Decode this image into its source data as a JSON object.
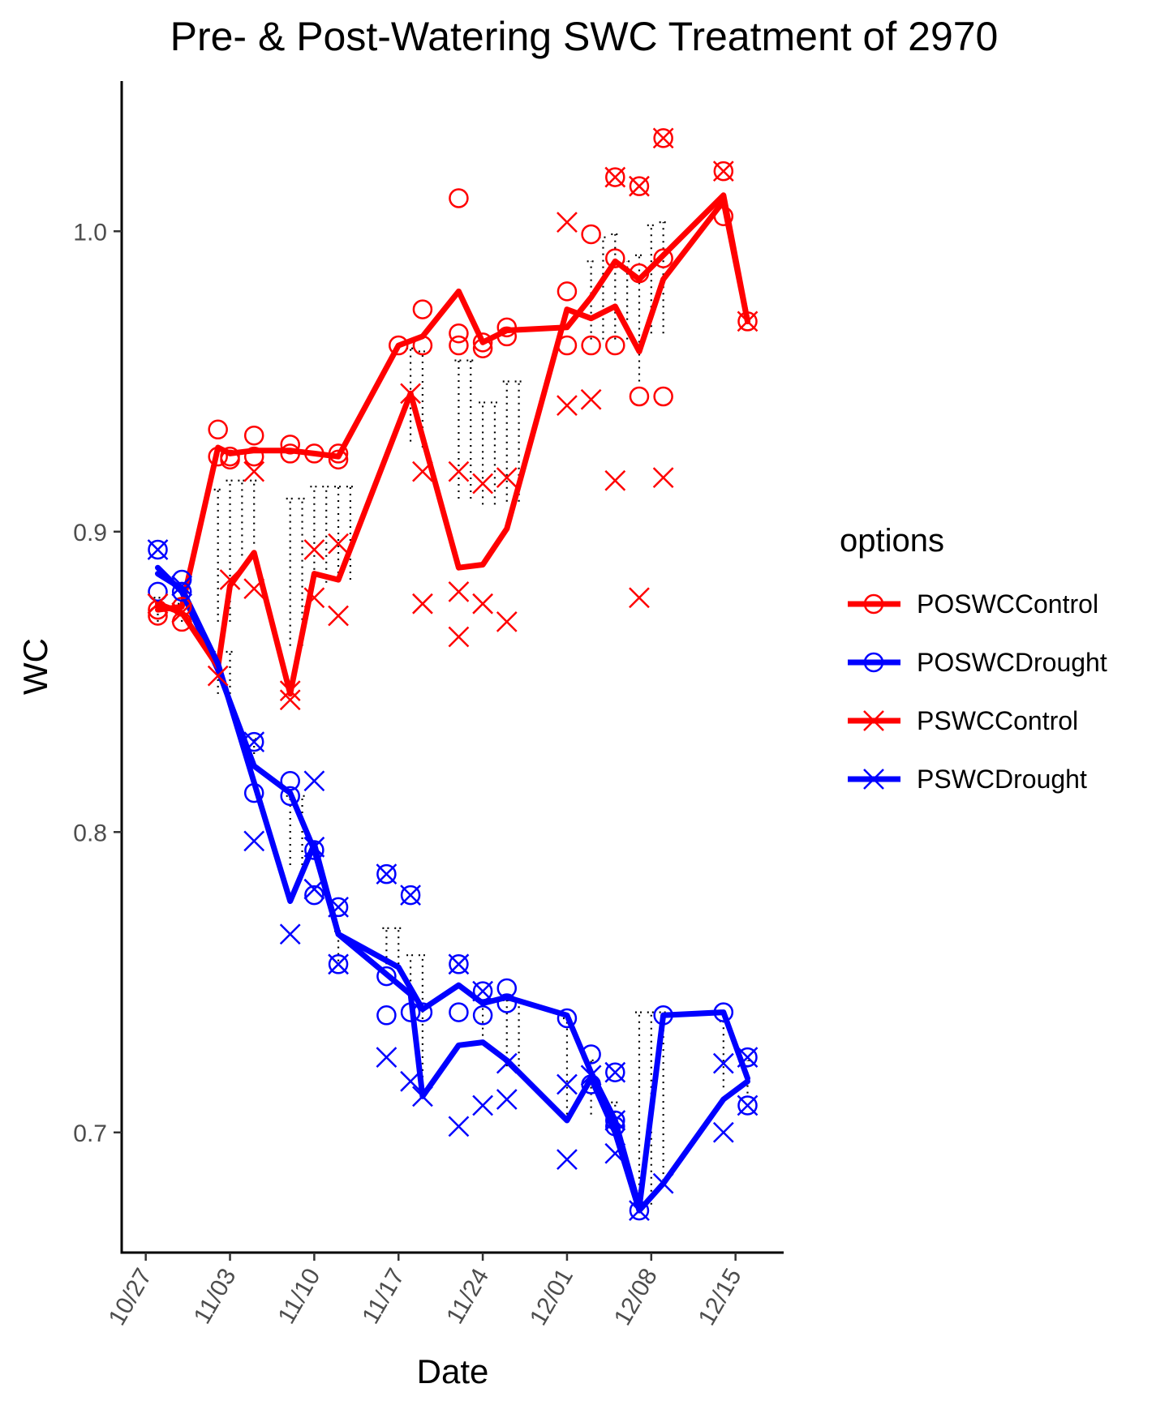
{
  "chart_data": {
    "type": "line",
    "title": "Pre- & Post-Watering SWC Treatment of  2970",
    "xlabel": "Date",
    "ylabel": "WC",
    "x_tick_labels": [
      "10/27",
      "11/03",
      "11/10",
      "11/17",
      "11/24",
      "12/01",
      "12/08",
      "12/15"
    ],
    "y_tick_labels": [
      "0.7",
      "0.8",
      "0.9",
      "1.0"
    ],
    "y_ticks": [
      0.7,
      0.8,
      0.9,
      1.0
    ],
    "ylim": [
      0.66,
      1.05
    ],
    "xlim": [
      "2021-10-25",
      "2021-12-19"
    ],
    "legend": {
      "title": "options",
      "position": "right"
    },
    "grid": false,
    "line_width_note": "",
    "series": [
      {
        "name": "POSWCControl",
        "color": "#ff0000",
        "marker": "circle",
        "line": [
          [
            "2021-10-28",
            0.874
          ],
          [
            "2021-10-30",
            0.875
          ],
          [
            "2021-11-02",
            0.928
          ],
          [
            "2021-11-03",
            0.926
          ],
          [
            "2021-11-05",
            0.927
          ],
          [
            "2021-11-08",
            0.927
          ],
          [
            "2021-11-10",
            0.926
          ],
          [
            "2021-11-12",
            0.925
          ],
          [
            "2021-11-17",
            0.962
          ],
          [
            "2021-11-19",
            0.965
          ],
          [
            "2021-11-22",
            0.98
          ],
          [
            "2021-11-24",
            0.963
          ],
          [
            "2021-11-26",
            0.967
          ],
          [
            "2021-12-01",
            0.968
          ],
          [
            "2021-12-03",
            0.978
          ],
          [
            "2021-12-05",
            0.99
          ],
          [
            "2021-12-07",
            0.984
          ],
          [
            "2021-12-09",
            0.992
          ],
          [
            "2021-12-14",
            1.012
          ],
          [
            "2021-12-16",
            0.97
          ]
        ],
        "points": [
          [
            "2021-10-28",
            0.874
          ],
          [
            "2021-10-28",
            0.872
          ],
          [
            "2021-10-30",
            0.875
          ],
          [
            "2021-10-30",
            0.87
          ],
          [
            "2021-11-02",
            0.934
          ],
          [
            "2021-11-02",
            0.925
          ],
          [
            "2021-11-03",
            0.925
          ],
          [
            "2021-11-03",
            0.924
          ],
          [
            "2021-11-05",
            0.932
          ],
          [
            "2021-11-05",
            0.925
          ],
          [
            "2021-11-08",
            0.929
          ],
          [
            "2021-11-08",
            0.926
          ],
          [
            "2021-11-10",
            0.926
          ],
          [
            "2021-11-12",
            0.926
          ],
          [
            "2021-11-12",
            0.924
          ],
          [
            "2021-11-17",
            0.962
          ],
          [
            "2021-11-19",
            0.974
          ],
          [
            "2021-11-19",
            0.962
          ],
          [
            "2021-11-22",
            1.011
          ],
          [
            "2021-11-22",
            0.966
          ],
          [
            "2021-11-22",
            0.962
          ],
          [
            "2021-11-24",
            0.963
          ],
          [
            "2021-11-24",
            0.961
          ],
          [
            "2021-11-26",
            0.968
          ],
          [
            "2021-11-26",
            0.965
          ],
          [
            "2021-12-01",
            0.98
          ],
          [
            "2021-12-01",
            0.962
          ],
          [
            "2021-12-03",
            0.999
          ],
          [
            "2021-12-03",
            0.962
          ],
          [
            "2021-12-05",
            1.018
          ],
          [
            "2021-12-05",
            0.991
          ],
          [
            "2021-12-05",
            0.962
          ],
          [
            "2021-12-07",
            1.015
          ],
          [
            "2021-12-07",
            0.986
          ],
          [
            "2021-12-07",
            0.945
          ],
          [
            "2021-12-09",
            1.031
          ],
          [
            "2021-12-09",
            0.991
          ],
          [
            "2021-12-09",
            0.945
          ],
          [
            "2021-12-14",
            1.02
          ],
          [
            "2021-12-14",
            1.005
          ],
          [
            "2021-12-16",
            0.97
          ]
        ]
      },
      {
        "name": "POSWCDrought",
        "color": "#0000ff",
        "marker": "circle",
        "line": [
          [
            "2021-10-28",
            0.888
          ],
          [
            "2021-10-30",
            0.88
          ],
          [
            "2021-11-02",
            0.854
          ],
          [
            "2021-11-05",
            0.822
          ],
          [
            "2021-11-08",
            0.813
          ],
          [
            "2021-11-10",
            0.794
          ],
          [
            "2021-11-12",
            0.766
          ],
          [
            "2021-11-17",
            0.755
          ],
          [
            "2021-11-19",
            0.741
          ],
          [
            "2021-11-22",
            0.749
          ],
          [
            "2021-11-24",
            0.743
          ],
          [
            "2021-11-26",
            0.745
          ],
          [
            "2021-12-01",
            0.739
          ],
          [
            "2021-12-03",
            0.72
          ],
          [
            "2021-12-05",
            0.704
          ],
          [
            "2021-12-07",
            0.675
          ],
          [
            "2021-12-09",
            0.739
          ],
          [
            "2021-12-14",
            0.74
          ],
          [
            "2021-12-16",
            0.718
          ]
        ],
        "points": [
          [
            "2021-10-28",
            0.894
          ],
          [
            "2021-10-28",
            0.88
          ],
          [
            "2021-10-30",
            0.884
          ],
          [
            "2021-10-30",
            0.88
          ],
          [
            "2021-11-05",
            0.83
          ],
          [
            "2021-11-05",
            0.813
          ],
          [
            "2021-11-08",
            0.817
          ],
          [
            "2021-11-08",
            0.812
          ],
          [
            "2021-11-10",
            0.794
          ],
          [
            "2021-11-10",
            0.779
          ],
          [
            "2021-11-12",
            0.775
          ],
          [
            "2021-11-12",
            0.756
          ],
          [
            "2021-11-16",
            0.786
          ],
          [
            "2021-11-16",
            0.752
          ],
          [
            "2021-11-16",
            0.739
          ],
          [
            "2021-11-18",
            0.779
          ],
          [
            "2021-11-18",
            0.74
          ],
          [
            "2021-11-19",
            0.74
          ],
          [
            "2021-11-22",
            0.756
          ],
          [
            "2021-11-22",
            0.74
          ],
          [
            "2021-11-24",
            0.747
          ],
          [
            "2021-11-24",
            0.739
          ],
          [
            "2021-11-26",
            0.748
          ],
          [
            "2021-11-26",
            0.743
          ],
          [
            "2021-12-01",
            0.738
          ],
          [
            "2021-12-03",
            0.726
          ],
          [
            "2021-12-03",
            0.716
          ],
          [
            "2021-12-05",
            0.72
          ],
          [
            "2021-12-05",
            0.704
          ],
          [
            "2021-12-05",
            0.702
          ],
          [
            "2021-12-07",
            0.674
          ],
          [
            "2021-12-09",
            0.739
          ],
          [
            "2021-12-14",
            0.74
          ],
          [
            "2021-12-16",
            0.725
          ],
          [
            "2021-12-16",
            0.709
          ]
        ]
      },
      {
        "name": "PSWCControl",
        "color": "#ff0000",
        "marker": "x",
        "line": [
          [
            "2021-10-28",
            0.876
          ],
          [
            "2021-10-30",
            0.873
          ],
          [
            "2021-11-02",
            0.855
          ],
          [
            "2021-11-03",
            0.882
          ],
          [
            "2021-11-05",
            0.893
          ],
          [
            "2021-11-08",
            0.846
          ],
          [
            "2021-11-10",
            0.886
          ],
          [
            "2021-11-12",
            0.884
          ],
          [
            "2021-11-18",
            0.946
          ],
          [
            "2021-11-22",
            0.888
          ],
          [
            "2021-11-24",
            0.889
          ],
          [
            "2021-11-26",
            0.901
          ],
          [
            "2021-12-01",
            0.974
          ],
          [
            "2021-12-03",
            0.971
          ],
          [
            "2021-12-05",
            0.975
          ],
          [
            "2021-12-07",
            0.96
          ],
          [
            "2021-12-09",
            0.984
          ],
          [
            "2021-12-14",
            1.01
          ],
          [
            "2021-12-16",
            0.97
          ]
        ],
        "points": [
          [
            "2021-10-28",
            0.876
          ],
          [
            "2021-10-30",
            0.873
          ],
          [
            "2021-11-02",
            0.852
          ],
          [
            "2021-11-03",
            0.884
          ],
          [
            "2021-11-05",
            0.92
          ],
          [
            "2021-11-05",
            0.881
          ],
          [
            "2021-11-08",
            0.847
          ],
          [
            "2021-11-08",
            0.844
          ],
          [
            "2021-11-10",
            0.894
          ],
          [
            "2021-11-10",
            0.878
          ],
          [
            "2021-11-12",
            0.896
          ],
          [
            "2021-11-12",
            0.872
          ],
          [
            "2021-11-18",
            0.946
          ],
          [
            "2021-11-19",
            0.92
          ],
          [
            "2021-11-19",
            0.876
          ],
          [
            "2021-11-22",
            0.92
          ],
          [
            "2021-11-22",
            0.88
          ],
          [
            "2021-11-22",
            0.865
          ],
          [
            "2021-11-24",
            0.916
          ],
          [
            "2021-11-24",
            0.876
          ],
          [
            "2021-11-26",
            0.918
          ],
          [
            "2021-11-26",
            0.87
          ],
          [
            "2021-12-01",
            1.003
          ],
          [
            "2021-12-01",
            0.942
          ],
          [
            "2021-12-03",
            0.944
          ],
          [
            "2021-12-05",
            1.018
          ],
          [
            "2021-12-05",
            0.917
          ],
          [
            "2021-12-07",
            1.015
          ],
          [
            "2021-12-07",
            0.878
          ],
          [
            "2021-12-09",
            1.031
          ],
          [
            "2021-12-09",
            0.918
          ],
          [
            "2021-12-14",
            1.02
          ],
          [
            "2021-12-16",
            0.97
          ]
        ]
      },
      {
        "name": "PSWCDrought",
        "color": "#0000ff",
        "marker": "x",
        "line": [
          [
            "2021-10-28",
            0.886
          ],
          [
            "2021-10-30",
            0.881
          ],
          [
            "2021-11-02",
            0.856
          ],
          [
            "2021-11-08",
            0.777
          ],
          [
            "2021-11-10",
            0.796
          ],
          [
            "2021-11-12",
            0.766
          ],
          [
            "2021-11-18",
            0.746
          ],
          [
            "2021-11-19",
            0.712
          ],
          [
            "2021-11-22",
            0.729
          ],
          [
            "2021-11-24",
            0.73
          ],
          [
            "2021-11-26",
            0.724
          ],
          [
            "2021-12-01",
            0.704
          ],
          [
            "2021-12-03",
            0.718
          ],
          [
            "2021-12-05",
            0.7
          ],
          [
            "2021-12-07",
            0.674
          ],
          [
            "2021-12-09",
            0.683
          ],
          [
            "2021-12-14",
            0.711
          ],
          [
            "2021-12-16",
            0.717
          ]
        ],
        "points": [
          [
            "2021-10-28",
            0.894
          ],
          [
            "2021-10-30",
            0.882
          ],
          [
            "2021-11-05",
            0.83
          ],
          [
            "2021-11-05",
            0.797
          ],
          [
            "2021-11-08",
            0.766
          ],
          [
            "2021-11-10",
            0.817
          ],
          [
            "2021-11-10",
            0.795
          ],
          [
            "2021-11-10",
            0.781
          ],
          [
            "2021-11-12",
            0.775
          ],
          [
            "2021-11-12",
            0.756
          ],
          [
            "2021-11-16",
            0.786
          ],
          [
            "2021-11-16",
            0.725
          ],
          [
            "2021-11-18",
            0.779
          ],
          [
            "2021-11-18",
            0.717
          ],
          [
            "2021-11-19",
            0.712
          ],
          [
            "2021-11-22",
            0.756
          ],
          [
            "2021-11-22",
            0.702
          ],
          [
            "2021-11-24",
            0.747
          ],
          [
            "2021-11-24",
            0.709
          ],
          [
            "2021-11-26",
            0.723
          ],
          [
            "2021-11-26",
            0.711
          ],
          [
            "2021-12-01",
            0.716
          ],
          [
            "2021-12-01",
            0.691
          ],
          [
            "2021-12-03",
            0.719
          ],
          [
            "2021-12-05",
            0.72
          ],
          [
            "2021-12-05",
            0.704
          ],
          [
            "2021-12-05",
            0.693
          ],
          [
            "2021-12-07",
            0.674
          ],
          [
            "2021-12-09",
            0.683
          ],
          [
            "2021-12-14",
            0.723
          ],
          [
            "2021-12-14",
            0.7
          ],
          [
            "2021-12-16",
            0.725
          ],
          [
            "2021-12-16",
            0.709
          ]
        ]
      }
    ],
    "dotted_ranges": [
      [
        "2021-10-28",
        0.87,
        0.878
      ],
      [
        "2021-10-30",
        0.87,
        0.876
      ],
      [
        "2021-11-02",
        0.87,
        0.914
      ],
      [
        "2021-11-03",
        0.87,
        0.917
      ],
      [
        "2021-11-04",
        0.892,
        0.917
      ],
      [
        "2021-11-05",
        0.896,
        0.917
      ],
      [
        "2021-11-08",
        0.862,
        0.911
      ],
      [
        "2021-11-09",
        0.862,
        0.911
      ],
      [
        "2021-11-10",
        0.883,
        0.915
      ],
      [
        "2021-11-11",
        0.883,
        0.915
      ],
      [
        "2021-11-12",
        0.884,
        0.915
      ],
      [
        "2021-11-13",
        0.884,
        0.915
      ],
      [
        "2021-11-18",
        0.93,
        0.961
      ],
      [
        "2021-11-19",
        0.928,
        0.96
      ],
      [
        "2021-11-22",
        0.911,
        0.957
      ],
      [
        "2021-11-23",
        0.911,
        0.957
      ],
      [
        "2021-11-24",
        0.909,
        0.943
      ],
      [
        "2021-11-25",
        0.909,
        0.943
      ],
      [
        "2021-11-26",
        0.91,
        0.95
      ],
      [
        "2021-11-27",
        0.91,
        0.95
      ],
      [
        "2021-12-03",
        0.964,
        0.99
      ],
      [
        "2021-12-04",
        0.964,
        0.998
      ],
      [
        "2021-12-05",
        0.964,
        0.999
      ],
      [
        "2021-12-06",
        0.964,
        0.99
      ],
      [
        "2021-12-07",
        0.95,
        0.992
      ],
      [
        "2021-12-08",
        0.966,
        1.002
      ],
      [
        "2021-12-09",
        0.966,
        1.003
      ],
      [
        "2021-11-02",
        0.846,
        0.86
      ],
      [
        "2021-11-03",
        0.846,
        0.86
      ],
      [
        "2021-11-05",
        0.826,
        0.831
      ],
      [
        "2021-11-08",
        0.789,
        0.812
      ],
      [
        "2021-11-09",
        0.789,
        0.812
      ],
      [
        "2021-11-12",
        0.757,
        0.767
      ],
      [
        "2021-11-16",
        0.756,
        0.768
      ],
      [
        "2021-11-17",
        0.756,
        0.768
      ],
      [
        "2021-11-18",
        0.746,
        0.759
      ],
      [
        "2021-11-19",
        0.714,
        0.759
      ],
      [
        "2021-11-24",
        0.73,
        0.744
      ],
      [
        "2021-11-26",
        0.722,
        0.744
      ],
      [
        "2021-11-27",
        0.722,
        0.744
      ],
      [
        "2021-12-01",
        0.706,
        0.738
      ],
      [
        "2021-12-03",
        0.706,
        0.724
      ],
      [
        "2021-12-05",
        0.7,
        0.71
      ],
      [
        "2021-12-07",
        0.676,
        0.74
      ],
      [
        "2021-12-08",
        0.676,
        0.74
      ],
      [
        "2021-12-09",
        0.684,
        0.74
      ],
      [
        "2021-12-14",
        0.715,
        0.737
      ],
      [
        "2021-12-16",
        0.713,
        0.724
      ]
    ]
  }
}
